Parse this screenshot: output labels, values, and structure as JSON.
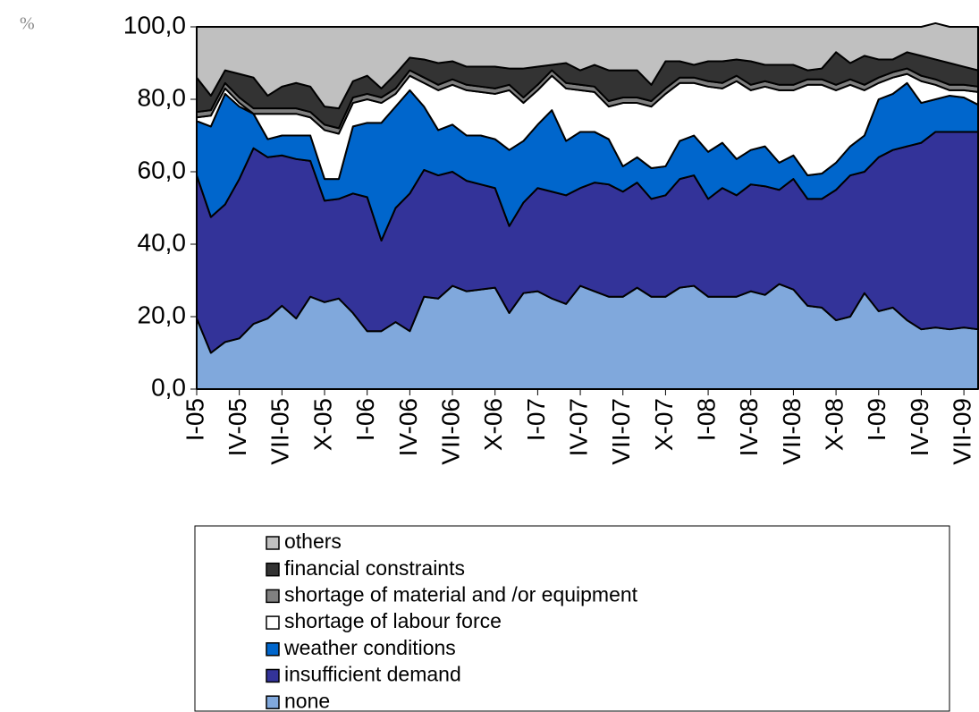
{
  "chart_data": {
    "type": "stacked-area",
    "y_label": "%",
    "categories": [
      "I-05",
      null,
      null,
      "IV-05",
      null,
      null,
      "VII-05",
      null,
      null,
      "X-05",
      null,
      null,
      "I-06",
      null,
      null,
      "IV-06",
      null,
      null,
      "VII-06",
      null,
      null,
      "X-06",
      null,
      null,
      "I-07",
      null,
      null,
      "IV-07",
      null,
      null,
      "VII-07",
      null,
      null,
      "X-07",
      null,
      null,
      "I-08",
      null,
      null,
      "IV-08",
      null,
      null,
      "VII-08",
      null,
      null,
      "X-08",
      null,
      null,
      "I-09",
      null,
      null,
      "IV-09",
      null,
      null,
      "VII-09",
      null
    ],
    "series": [
      {
        "name": "none",
        "color": "#80a8dc",
        "values": [
          19.5,
          10,
          13,
          14,
          18,
          19.5,
          23,
          19.5,
          25.5,
          24,
          25,
          21,
          16,
          16,
          18.5,
          16,
          25.5,
          25,
          28.5,
          27,
          27.5,
          28,
          21,
          26.5,
          27,
          25,
          23.5,
          28.5,
          27,
          25.5,
          25.5,
          28,
          25.5,
          25.5,
          28,
          28.5,
          25.5,
          25.5,
          25.5,
          27,
          26,
          29,
          27.5,
          23,
          22.5,
          19,
          20,
          26.5,
          21.5,
          22.5,
          19,
          16.5,
          17,
          16.5,
          17,
          16.5
        ]
      },
      {
        "name": "insufficient demand",
        "color": "#333399",
        "values": [
          39.5,
          37.5,
          38,
          44,
          48.5,
          44.5,
          41.5,
          44,
          37.5,
          28,
          27.5,
          33,
          37,
          25,
          31.5,
          38,
          35,
          34,
          31.5,
          30.5,
          29,
          27.5,
          24,
          25,
          28.5,
          29.5,
          30,
          27,
          30,
          31,
          29,
          29,
          27,
          28,
          30,
          30.5,
          27,
          30,
          28,
          29.5,
          30,
          26,
          30.5,
          29.5,
          30,
          36,
          39,
          33.5,
          42.5,
          43.5,
          48,
          51.5,
          54,
          54.5,
          54,
          54.5
        ]
      },
      {
        "name": "weather conditions",
        "color": "#0066cc",
        "values": [
          15,
          25,
          30.5,
          20,
          9.5,
          5,
          5.5,
          6.5,
          7,
          6,
          5.5,
          18.5,
          20.5,
          32.5,
          28,
          28.5,
          17.5,
          12.5,
          13,
          12.5,
          13.5,
          13.5,
          21,
          17,
          17.5,
          22.5,
          15,
          15.5,
          14,
          12.5,
          7,
          7,
          8.5,
          8,
          10.5,
          11,
          13,
          12.5,
          10,
          9.5,
          11,
          7.5,
          6.5,
          6.5,
          7,
          7.5,
          8,
          10,
          16,
          15.5,
          17.5,
          11,
          9,
          10,
          9.5,
          7.5
        ]
      },
      {
        "name": "shortage of labour force",
        "color": "#ffffff",
        "values": [
          1,
          3,
          1.5,
          1,
          0,
          7,
          6,
          6,
          5,
          13.5,
          12.5,
          6.5,
          6.5,
          5.5,
          3.5,
          4,
          6.5,
          11,
          11,
          12.5,
          12,
          12.5,
          16.5,
          10.5,
          9.5,
          9.5,
          14.5,
          11.5,
          11,
          9,
          17.5,
          15,
          17,
          20,
          16,
          14.5,
          18,
          15,
          21.5,
          16.5,
          16.5,
          20,
          18,
          25,
          24.5,
          20,
          17,
          12.5,
          4.5,
          4.5,
          2.5,
          6,
          4,
          1.5,
          2,
          3.5
        ]
      },
      {
        "name": "shortage of material and /or equipment",
        "color": "#808080",
        "values": [
          1.5,
          1.5,
          1.5,
          1.5,
          1.5,
          1.5,
          1.5,
          1.5,
          1.5,
          1.5,
          1.5,
          1.5,
          1.5,
          1.5,
          1.5,
          1.5,
          1.5,
          1.5,
          1.5,
          1.5,
          1.5,
          1.5,
          1.5,
          1.5,
          1.5,
          1.5,
          1.5,
          1.5,
          1.5,
          1.5,
          1.5,
          1.5,
          1.5,
          1.5,
          1.5,
          1.5,
          1.5,
          1.5,
          1.5,
          1.5,
          1.5,
          1.5,
          1.5,
          1.5,
          1.5,
          1.5,
          1.5,
          1.5,
          1.5,
          1.5,
          1.5,
          1.5,
          1.5,
          1.5,
          1.5,
          1.5
        ]
      },
      {
        "name": "financial constraints",
        "color": "#333333",
        "values": [
          9.5,
          4,
          3.5,
          6.5,
          8.5,
          3.5,
          6,
          7,
          7,
          5,
          5.5,
          4.5,
          5,
          2.5,
          4,
          3.5,
          5,
          6,
          5,
          5,
          5.5,
          6,
          4.5,
          8,
          5,
          1.5,
          5.5,
          4,
          6,
          8.5,
          7.5,
          7.5,
          4.5,
          7.5,
          4.5,
          3.5,
          5.5,
          6,
          4.5,
          6.5,
          4.5,
          5.5,
          5.5,
          2.5,
          3,
          9,
          4.5,
          8,
          5,
          3.5,
          4.5,
          5.5,
          5.5,
          6,
          5,
          4.5
        ]
      },
      {
        "name": "others",
        "color": "#c0c0c0",
        "values": [
          14,
          19,
          12,
          13,
          14,
          19,
          16.5,
          15.5,
          16.5,
          22,
          22.5,
          15,
          13.5,
          17,
          13,
          8.5,
          9,
          10,
          9.5,
          11,
          11,
          11,
          11.5,
          11.5,
          11,
          10.5,
          10,
          12,
          10.5,
          12,
          12,
          12,
          16,
          9.5,
          9.5,
          10.5,
          9.5,
          9.5,
          9,
          9.5,
          10.5,
          10.5,
          10.5,
          12,
          11.5,
          7,
          10,
          8,
          9,
          9,
          7,
          8,
          10,
          10,
          11,
          12
        ]
      }
    ],
    "ylim": [
      0,
      100
    ],
    "yticks": [
      {
        "value": 0,
        "label": "0,0"
      },
      {
        "value": 20,
        "label": "20,0"
      },
      {
        "value": 40,
        "label": "40,0"
      },
      {
        "value": 60,
        "label": "60,0"
      },
      {
        "value": 80,
        "label": "80,0"
      },
      {
        "value": 100,
        "label": "100,0"
      }
    ],
    "legend": "bottom"
  }
}
